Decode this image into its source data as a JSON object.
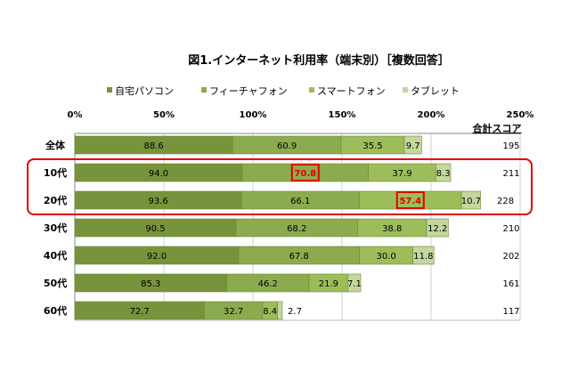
{
  "chart_data": {
    "type": "bar",
    "orientation": "horizontal",
    "stacked": true,
    "title": "図1.インターネット利用率（端末別）［複数回答］",
    "categories": [
      "全体",
      "10代",
      "20代",
      "30代",
      "40代",
      "50代",
      "60代"
    ],
    "series": [
      {
        "name": "自宅パソコン",
        "color": "#77933c",
        "values": [
          88.6,
          94.0,
          93.6,
          90.5,
          92.0,
          85.3,
          72.7
        ]
      },
      {
        "name": "フィーチャフォン",
        "color": "#8cab4f",
        "values": [
          60.9,
          70.8,
          66.1,
          68.2,
          67.8,
          46.2,
          32.7
        ]
      },
      {
        "name": "スマートフォン",
        "color": "#9dbd5b",
        "values": [
          35.5,
          37.9,
          57.4,
          38.8,
          30.0,
          21.9,
          8.4
        ]
      },
      {
        "name": "タブレット",
        "color": "#c4d79e",
        "values": [
          9.7,
          8.3,
          10.7,
          12.2,
          11.8,
          7.1,
          2.7
        ]
      }
    ],
    "xlim": [
      0,
      250
    ],
    "xticks": [
      "0%",
      "50%",
      "100%",
      "150%",
      "200%",
      "250%"
    ],
    "grid": true,
    "legend": "top",
    "total_label": "合計スコア",
    "totals": [
      195,
      211,
      228,
      210,
      202,
      161,
      117
    ],
    "highlight": {
      "rows": [
        "10代",
        "20代"
      ],
      "boxed_values": [
        {
          "category": "10代",
          "series": "フィーチャフォン"
        },
        {
          "category": "20代",
          "series": "スマートフォン"
        }
      ],
      "color": "#e00000"
    }
  }
}
